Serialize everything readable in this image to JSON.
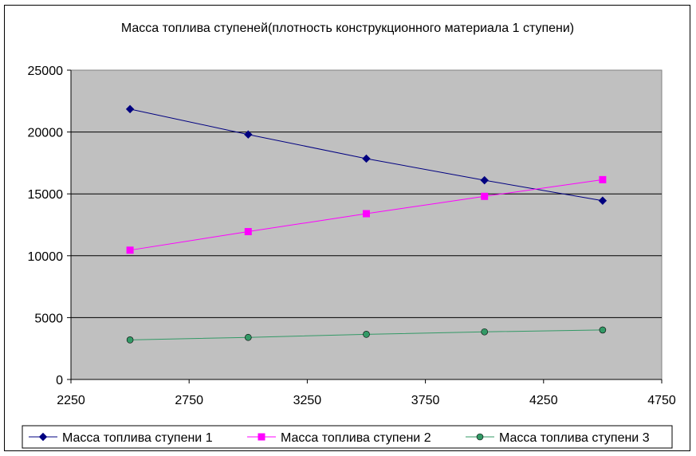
{
  "chart_data": {
    "type": "line",
    "title": "Масса топлива ступеней(плотность конструкционного материала 1 ступени)",
    "xlabel": "",
    "ylabel": "",
    "x": [
      2500,
      3000,
      3500,
      4000,
      4500
    ],
    "xlim": [
      2250,
      4750
    ],
    "xticks": [
      2250,
      2750,
      3250,
      3750,
      4250,
      4750
    ],
    "ylim": [
      0,
      25000
    ],
    "yticks": [
      0,
      5000,
      10000,
      15000,
      20000,
      25000
    ],
    "grid": "horizontal",
    "plot_background": "#C0C0C0",
    "legend_position": "bottom",
    "series": [
      {
        "name": "Масса топлива ступени 1",
        "color": "#000080",
        "marker": "diamond",
        "values": [
          21850,
          19800,
          17850,
          16100,
          14450
        ]
      },
      {
        "name": "Масса топлива ступени 2",
        "color": "#FF00FF",
        "marker": "square",
        "values": [
          10450,
          11950,
          13400,
          14800,
          16150
        ]
      },
      {
        "name": "Масса топлива ступени 3",
        "color": "#339966",
        "marker": "circle",
        "values": [
          3200,
          3400,
          3650,
          3850,
          4000
        ]
      }
    ]
  }
}
